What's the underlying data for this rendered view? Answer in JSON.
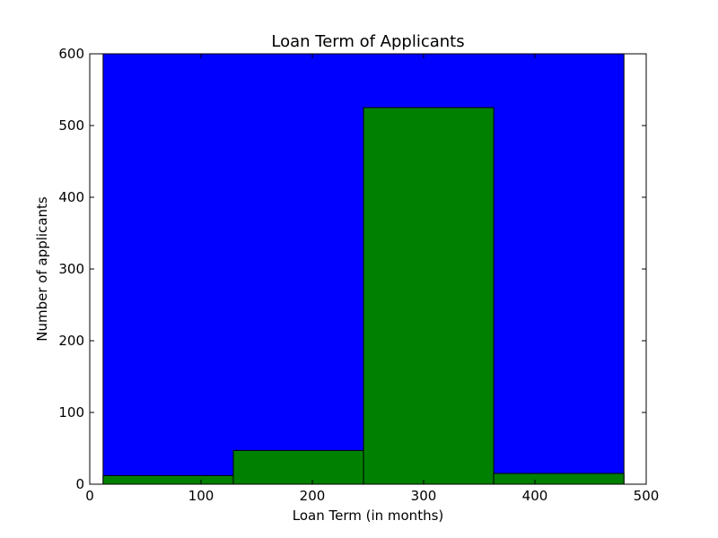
{
  "chart_data": {
    "type": "bar",
    "title": "Loan Term of Applicants",
    "xlabel": "Loan Term (in months)",
    "ylabel": "Number of applicants",
    "xlim": [
      0,
      500
    ],
    "ylim": [
      0,
      600
    ],
    "xticks": [
      0,
      100,
      200,
      300,
      400,
      500
    ],
    "yticks": [
      0,
      100,
      200,
      300,
      400,
      500,
      600
    ],
    "grid": false,
    "series": [
      {
        "color": "#0000ff",
        "bins": [
          {
            "x0": 12,
            "x1": 480,
            "value": 600
          }
        ]
      },
      {
        "color": "#008000",
        "bins": [
          {
            "x0": 12,
            "x1": 129,
            "value": 12
          },
          {
            "x0": 129,
            "x1": 246,
            "value": 47
          },
          {
            "x0": 246,
            "x1": 363,
            "value": 525
          },
          {
            "x0": 363,
            "x1": 480,
            "value": 15
          }
        ]
      }
    ]
  }
}
